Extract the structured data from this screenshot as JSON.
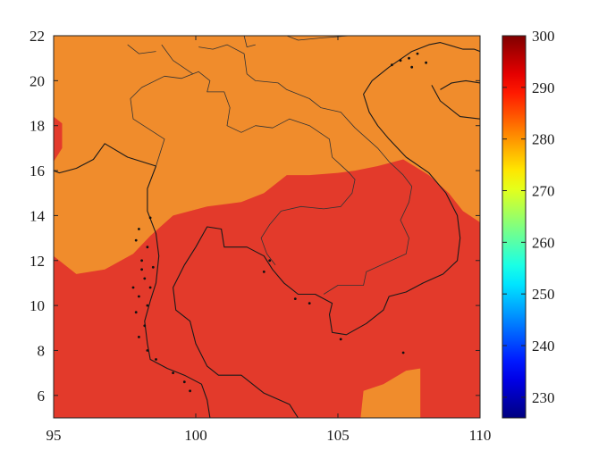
{
  "chart_data": {
    "type": "heatmap",
    "title": "",
    "xlabel": "",
    "ylabel": "",
    "xlim": [
      95,
      110
    ],
    "ylim": [
      5,
      22
    ],
    "x_ticks": [
      95,
      100,
      105,
      110
    ],
    "y_ticks": [
      6,
      8,
      10,
      12,
      14,
      16,
      18,
      20,
      22
    ],
    "x_tick_labels": [
      "95",
      "100",
      "105",
      "110"
    ],
    "y_tick_labels": [
      "6",
      "8",
      "10",
      "12",
      "14",
      "16",
      "18",
      "20",
      "22"
    ],
    "grid": false,
    "colorbar": {
      "min": 226,
      "max": 300,
      "ticks": [
        230,
        240,
        250,
        260,
        270,
        280,
        290,
        300
      ],
      "tick_labels": [
        "230",
        "240",
        "250",
        "260",
        "270",
        "280",
        "290",
        "300"
      ],
      "colormap": "jet"
    },
    "regions": [
      {
        "name": "south-warm",
        "value": 290,
        "color": "#e33a2b",
        "boundary": [
          [
            95,
            12.2
          ],
          [
            95.8,
            11.4
          ],
          [
            96.8,
            11.6
          ],
          [
            97.8,
            12.3
          ],
          [
            98.4,
            13.1
          ],
          [
            99.2,
            14.0
          ],
          [
            100.4,
            14.4
          ],
          [
            101.6,
            14.6
          ],
          [
            102.4,
            15.0
          ],
          [
            103.2,
            15.8
          ],
          [
            104.0,
            15.8
          ],
          [
            105.0,
            15.9
          ],
          [
            105.6,
            16.0
          ],
          [
            106.4,
            16.2
          ],
          [
            107.3,
            16.5
          ],
          [
            108.2,
            15.8
          ],
          [
            108.9,
            15.0
          ],
          [
            109.4,
            14.2
          ],
          [
            110,
            13.7
          ],
          [
            110,
            5
          ],
          [
            95,
            5
          ]
        ]
      },
      {
        "name": "west-edge-warm",
        "value": 290,
        "color": "#e33a2b",
        "boundary": [
          [
            95,
            18.4
          ],
          [
            95.3,
            18.1
          ],
          [
            95.3,
            17.0
          ],
          [
            95,
            16.4
          ]
        ]
      },
      {
        "name": "southeast-cool",
        "value": 282,
        "color": "#f08c2c",
        "boundary": [
          [
            105.8,
            5
          ],
          [
            105.9,
            6.2
          ],
          [
            106.6,
            6.5
          ],
          [
            107.4,
            7.1
          ],
          [
            107.9,
            7.2
          ],
          [
            107.9,
            5
          ]
        ]
      }
    ],
    "background": {
      "value": 282,
      "color": "#f08c2c"
    },
    "coastlines": [
      [
        [
          98.6,
          16.2
        ],
        [
          97.6,
          16.6
        ],
        [
          96.8,
          17.2
        ],
        [
          96.4,
          16.5
        ],
        [
          95.8,
          16.1
        ],
        [
          95.2,
          15.9
        ],
        [
          95,
          16.0
        ]
      ],
      [
        [
          98.6,
          16.2
        ],
        [
          98.3,
          15.2
        ],
        [
          98.3,
          14.2
        ],
        [
          98.6,
          13.2
        ],
        [
          98.7,
          12.2
        ],
        [
          98.6,
          11.0
        ],
        [
          98.4,
          10.2
        ],
        [
          98.2,
          9.3
        ],
        [
          98.3,
          8.3
        ],
        [
          98.4,
          7.6
        ],
        [
          99.0,
          7.2
        ],
        [
          99.6,
          6.9
        ],
        [
          100.2,
          6.5
        ],
        [
          100.4,
          5.8
        ],
        [
          100.5,
          5
        ]
      ],
      [
        [
          103.6,
          5
        ],
        [
          103.3,
          5.6
        ],
        [
          102.4,
          6.1
        ],
        [
          101.6,
          6.9
        ],
        [
          100.8,
          6.9
        ],
        [
          100.4,
          7.3
        ],
        [
          100.0,
          8.3
        ],
        [
          99.8,
          9.3
        ],
        [
          99.3,
          9.8
        ],
        [
          99.2,
          10.8
        ],
        [
          99.6,
          11.8
        ],
        [
          100.0,
          12.6
        ],
        [
          100.4,
          13.5
        ],
        [
          100.9,
          13.4
        ],
        [
          101.0,
          12.6
        ],
        [
          101.8,
          12.6
        ],
        [
          102.4,
          12.2
        ],
        [
          102.7,
          11.6
        ],
        [
          103.1,
          11.0
        ],
        [
          103.6,
          10.5
        ],
        [
          104.2,
          10.5
        ],
        [
          104.8,
          10.1
        ],
        [
          104.7,
          9.6
        ],
        [
          104.8,
          8.8
        ],
        [
          105.3,
          8.7
        ],
        [
          106.0,
          9.2
        ],
        [
          106.6,
          9.8
        ],
        [
          106.8,
          10.4
        ],
        [
          107.4,
          10.6
        ],
        [
          108.0,
          11.0
        ],
        [
          108.7,
          11.4
        ],
        [
          109.2,
          12.0
        ],
        [
          109.3,
          13.0
        ],
        [
          109.2,
          14.0
        ],
        [
          108.8,
          15.0
        ],
        [
          108.2,
          15.9
        ],
        [
          107.4,
          16.6
        ],
        [
          106.8,
          17.4
        ],
        [
          106.4,
          18.0
        ],
        [
          106.1,
          18.6
        ],
        [
          105.9,
          19.4
        ],
        [
          106.2,
          20.0
        ],
        [
          106.8,
          20.6
        ],
        [
          107.6,
          21.3
        ],
        [
          108.2,
          21.6
        ],
        [
          108.6,
          21.7
        ],
        [
          109.4,
          21.4
        ],
        [
          109.8,
          21.4
        ],
        [
          110,
          21.3
        ]
      ],
      [
        [
          108.3,
          19.8
        ],
        [
          108.6,
          19.1
        ],
        [
          109.3,
          18.4
        ],
        [
          110,
          18.3
        ]
      ],
      [
        [
          110,
          19.9
        ],
        [
          109.5,
          20.0
        ],
        [
          109.0,
          19.9
        ],
        [
          108.6,
          19.6
        ]
      ]
    ],
    "borders": [
      [
        [
          98.8,
          21.6
        ],
        [
          99.2,
          20.9
        ],
        [
          99.9,
          20.3
        ],
        [
          100.1,
          20.4
        ],
        [
          100.5,
          20.0
        ],
        [
          100.4,
          19.5
        ],
        [
          101.0,
          19.5
        ],
        [
          101.2,
          18.8
        ],
        [
          101.1,
          18.0
        ],
        [
          101.6,
          17.7
        ],
        [
          102.1,
          18.0
        ],
        [
          102.7,
          17.9
        ],
        [
          103.3,
          18.3
        ],
        [
          104.0,
          18.0
        ],
        [
          104.7,
          17.4
        ],
        [
          104.8,
          16.6
        ],
        [
          105.4,
          15.9
        ],
        [
          105.6,
          15.6
        ],
        [
          105.5,
          15.0
        ],
        [
          105.1,
          14.4
        ],
        [
          104.5,
          14.3
        ],
        [
          103.7,
          14.4
        ],
        [
          103.0,
          14.2
        ],
        [
          102.6,
          13.6
        ],
        [
          102.3,
          13.0
        ],
        [
          102.5,
          12.3
        ],
        [
          102.8,
          11.8
        ]
      ],
      [
        [
          98.6,
          16.2
        ],
        [
          98.9,
          17.4
        ],
        [
          97.8,
          18.3
        ],
        [
          97.7,
          19.2
        ],
        [
          98.1,
          19.7
        ],
        [
          98.9,
          20.2
        ],
        [
          99.5,
          20.1
        ],
        [
          99.9,
          20.3
        ]
      ],
      [
        [
          100.1,
          21.5
        ],
        [
          100.6,
          21.4
        ],
        [
          101.1,
          21.6
        ],
        [
          101.7,
          21.2
        ],
        [
          101.8,
          20.3
        ],
        [
          102.1,
          20.0
        ],
        [
          102.9,
          19.9
        ],
        [
          103.2,
          19.6
        ],
        [
          104.0,
          19.2
        ],
        [
          104.4,
          18.8
        ],
        [
          105.1,
          18.6
        ],
        [
          105.6,
          17.9
        ],
        [
          106.4,
          17.0
        ],
        [
          106.8,
          16.4
        ],
        [
          107.3,
          15.8
        ],
        [
          107.6,
          15.3
        ],
        [
          107.5,
          14.6
        ],
        [
          107.2,
          13.8
        ],
        [
          107.5,
          13.0
        ],
        [
          107.4,
          12.3
        ],
        [
          106.7,
          11.9
        ],
        [
          106.0,
          11.5
        ],
        [
          105.9,
          10.9
        ],
        [
          105.0,
          10.9
        ],
        [
          104.5,
          10.5
        ]
      ],
      [
        [
          97.6,
          21.6
        ],
        [
          98.0,
          21.2
        ],
        [
          98.6,
          21.3
        ]
      ],
      [
        [
          103.2,
          22
        ],
        [
          103.6,
          21.8
        ],
        [
          104.4,
          21.9
        ],
        [
          105.4,
          22
        ]
      ],
      [
        [
          101.7,
          22
        ],
        [
          101.8,
          21.5
        ],
        [
          102.1,
          21.6
        ]
      ]
    ],
    "islands": [
      [
        98.3,
        12.6
      ],
      [
        98.1,
        12.0
      ],
      [
        98.5,
        11.7
      ],
      [
        98.2,
        11.2
      ],
      [
        98.4,
        10.8
      ],
      [
        98.0,
        10.4
      ],
      [
        98.3,
        10.0
      ],
      [
        97.9,
        9.7
      ],
      [
        98.2,
        9.1
      ],
      [
        98.0,
        8.6
      ],
      [
        98.3,
        8.0
      ],
      [
        98.6,
        7.6
      ],
      [
        99.2,
        7.0
      ],
      [
        99.6,
        6.6
      ],
      [
        99.8,
        6.2
      ],
      [
        97.9,
        12.9
      ],
      [
        98.0,
        13.4
      ],
      [
        98.4,
        13.9
      ],
      [
        98.1,
        11.6
      ],
      [
        97.8,
        10.8
      ],
      [
        102.6,
        12.0
      ],
      [
        102.4,
        11.5
      ],
      [
        103.5,
        10.3
      ],
      [
        104.0,
        10.1
      ],
      [
        105.1,
        8.5
      ],
      [
        107.3,
        7.9
      ],
      [
        108.1,
        20.8
      ],
      [
        107.8,
        21.2
      ],
      [
        107.5,
        21.0
      ],
      [
        107.2,
        20.9
      ],
      [
        106.9,
        20.7
      ],
      [
        107.6,
        20.6
      ]
    ]
  }
}
